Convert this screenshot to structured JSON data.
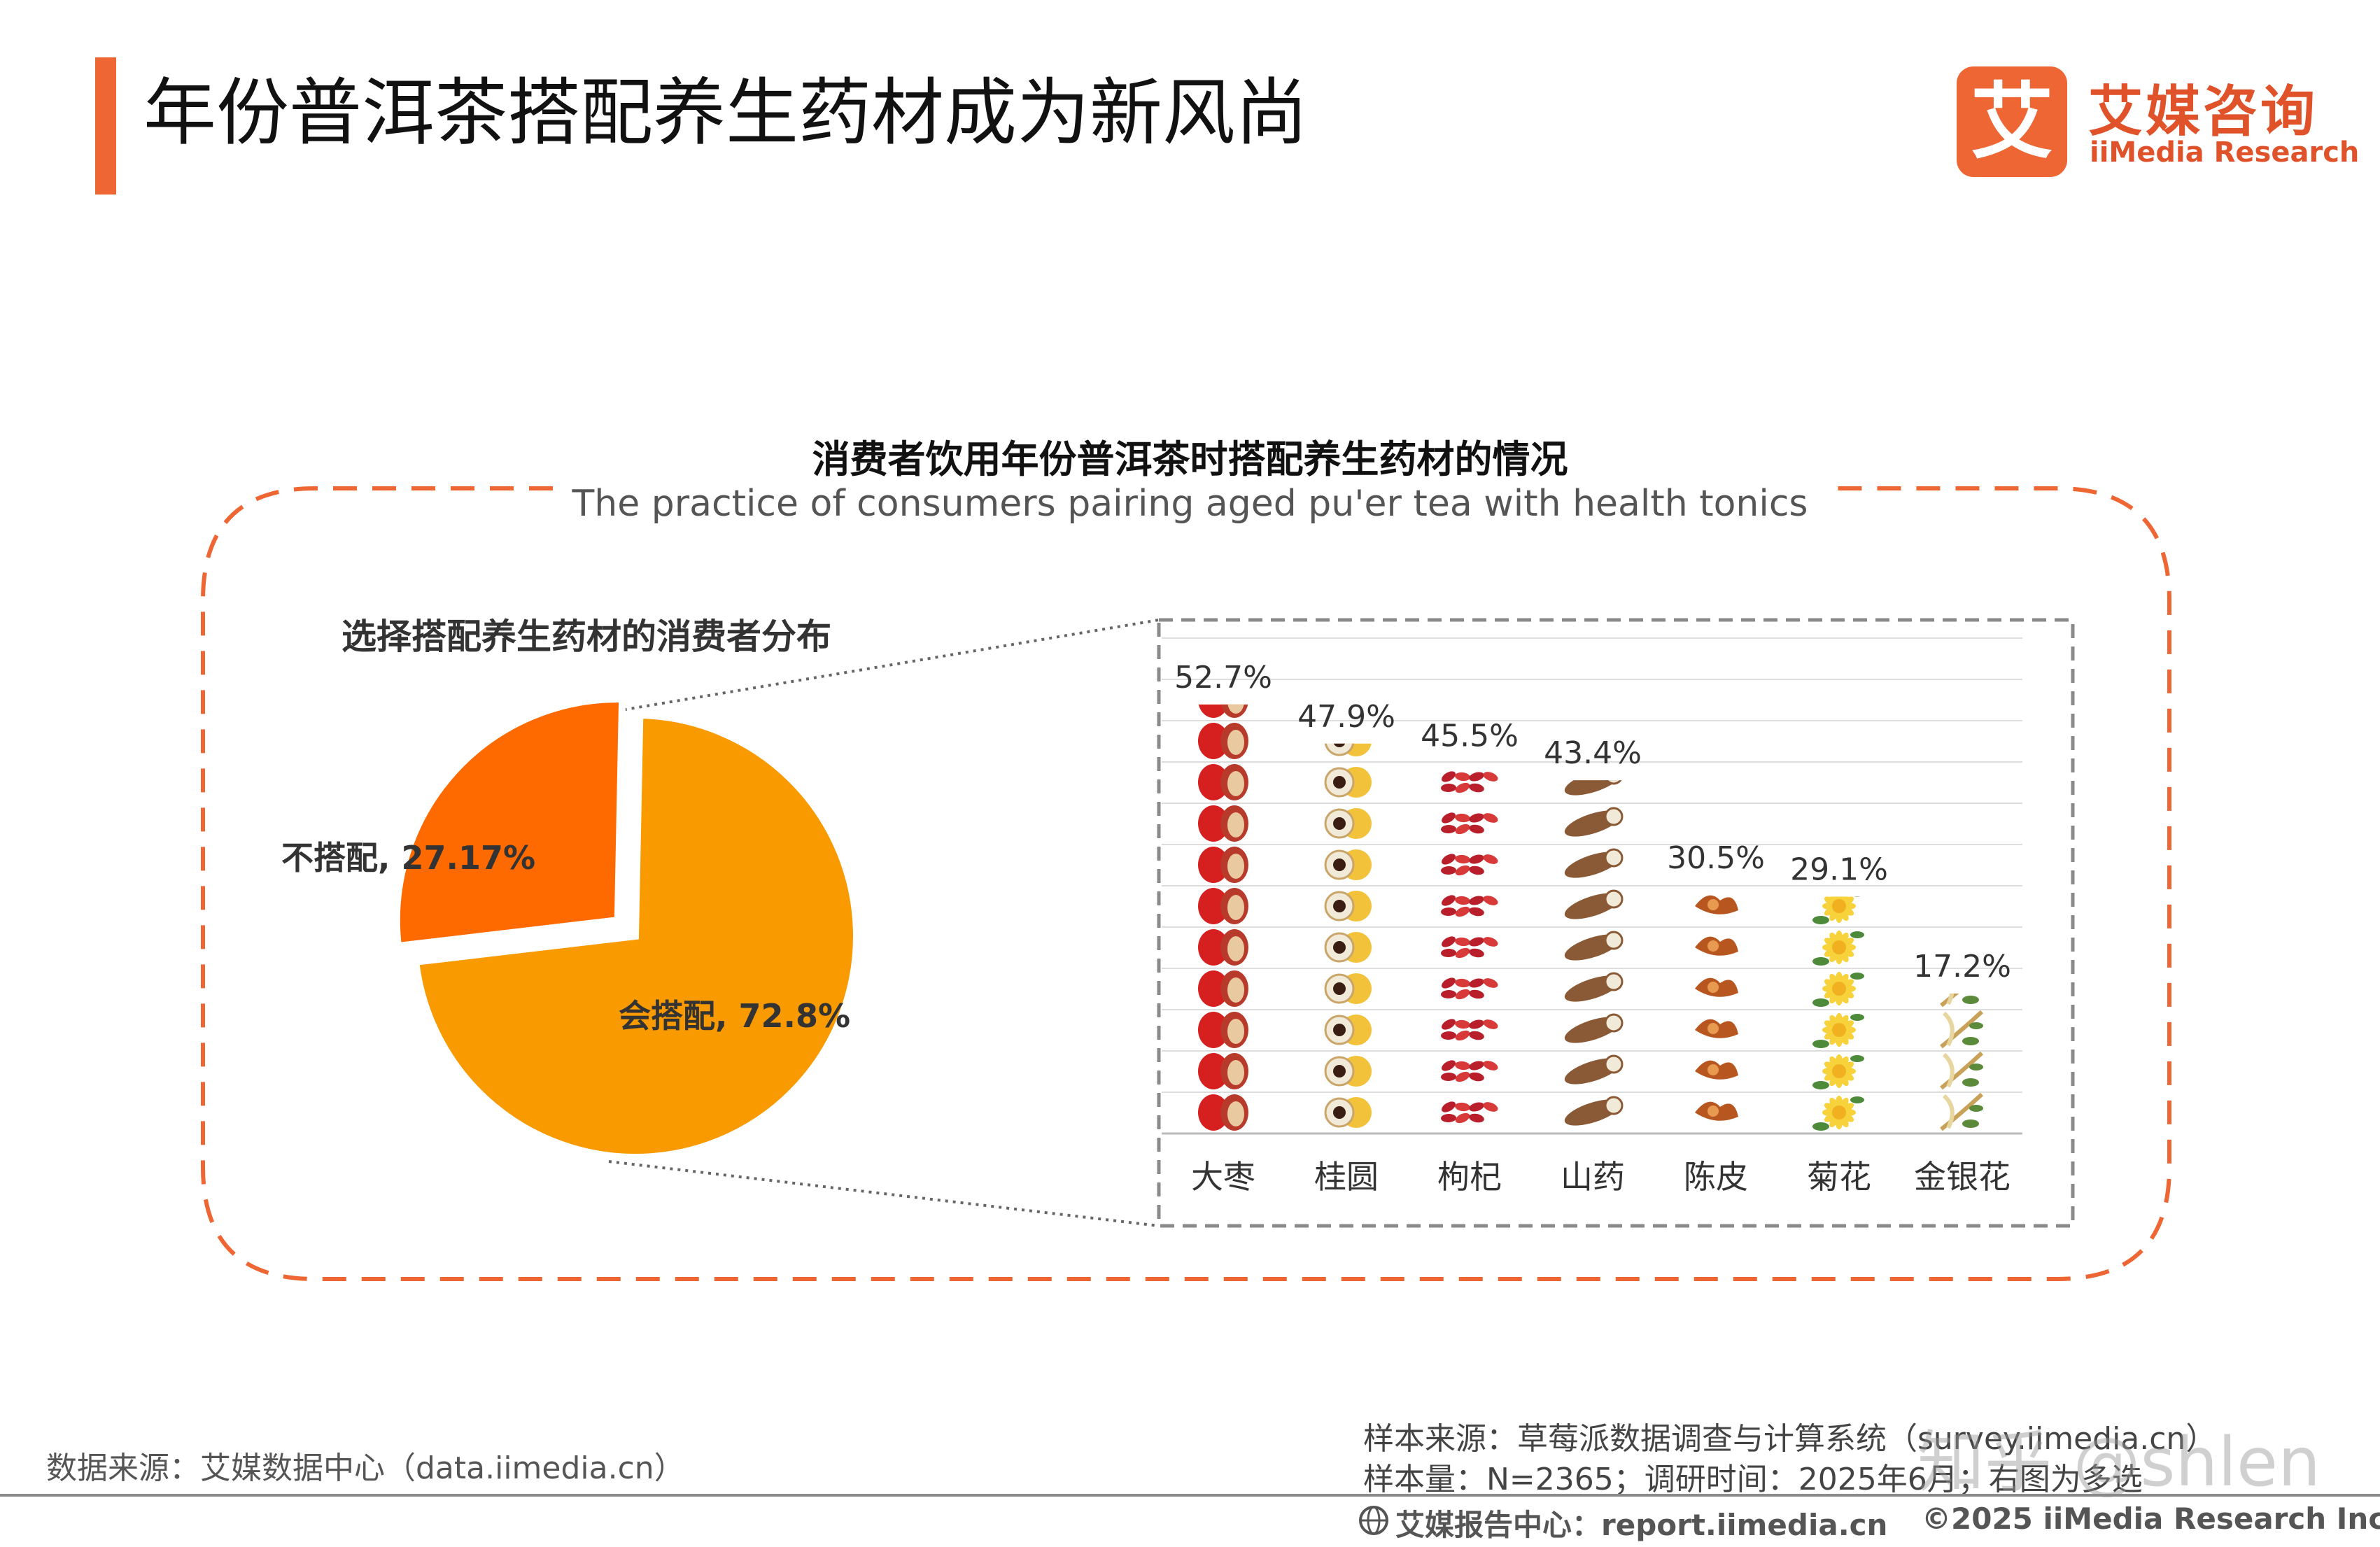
{
  "page": {
    "title": "年份普洱茶搭配养生药材成为新风尚",
    "brand_cn": "艾媒咨询",
    "brand_en": "iiMedia Research",
    "brand_mark": "艾"
  },
  "chart_data": [
    {
      "type": "pie",
      "title": "消费者饮用年份普洱茶时搭配养生药材的情况",
      "subtitle": "The practice of consumers pairing aged pu'er tea with health tonics",
      "section_title": "选择搭配养生药材的消费者分布",
      "slices": [
        {
          "label": "会搭配",
          "value": 72.8,
          "display": "会搭配, 72.8%",
          "color": "#f89a00"
        },
        {
          "label": "不搭配",
          "value": 27.17,
          "display": "不搭配, 27.17%",
          "color": "#ff6a00",
          "exploded": true
        }
      ]
    },
    {
      "type": "bar",
      "style": "pictogram",
      "categories": [
        "大枣",
        "桂圆",
        "枸杞",
        "山药",
        "陈皮",
        "菊花",
        "金银花"
      ],
      "values": [
        52.7,
        47.9,
        45.5,
        43.4,
        30.5,
        29.1,
        17.2
      ],
      "value_labels": [
        "52.7%",
        "47.9%",
        "45.5%",
        "43.4%",
        "30.5%",
        "29.1%",
        "17.2%"
      ],
      "icons": [
        "jujube-icon",
        "longan-icon",
        "goji-icon",
        "yam-icon",
        "tangerine-peel-icon",
        "chrysanthemum-icon",
        "honeysuckle-icon"
      ],
      "ylim": [
        0,
        60
      ],
      "grid": true
    }
  ],
  "footer": {
    "source": "数据来源：艾媒数据中心（data.iimedia.cn）",
    "sample_source": "样本来源：草莓派数据调查与计算系统（survey.iimedia.cn）",
    "sample_size": "样本量：N=2365；调研时间：2025年6月；右图为多选",
    "report_center": "艾媒报告中心：report.iimedia.cn",
    "copyright": "©2025  iiMedia Research  Inc"
  },
  "watermark": "知乎 @shlen",
  "colors": {
    "accent": "#ee6633",
    "pie_yes": "#f89a00",
    "pie_no": "#ff6a00"
  }
}
